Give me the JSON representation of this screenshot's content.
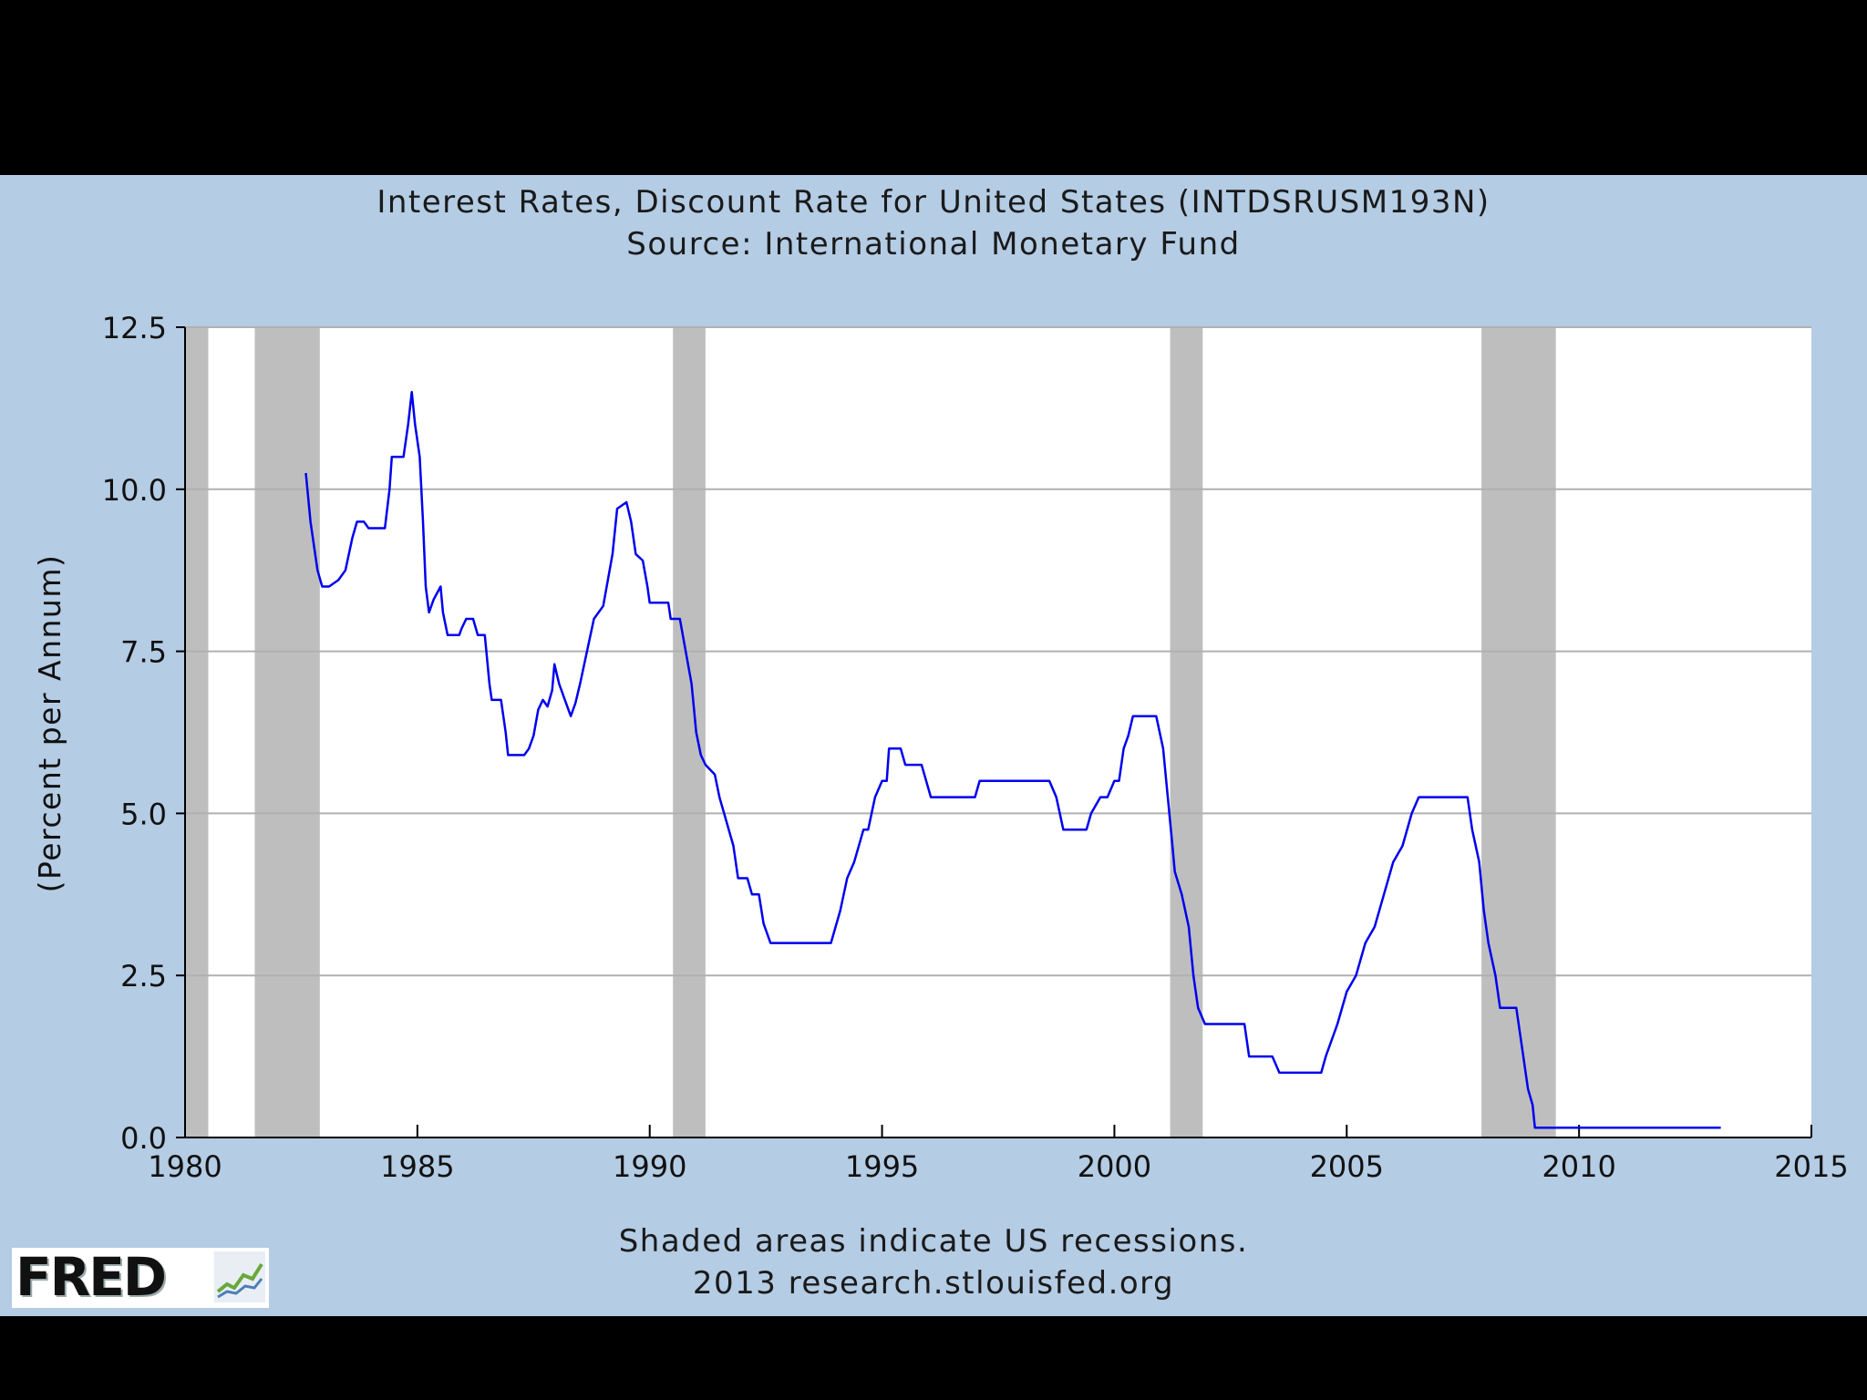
{
  "chart_data": {
    "type": "line",
    "title": "Interest Rates, Discount Rate for United States (INTDSRUSM193N)",
    "subtitle": "Source: International Monetary Fund",
    "ylabel": "(Percent per Annum)",
    "xlabel": "",
    "footnote": "Shaded areas indicate US recessions.",
    "credit": "2013 research.stlouisfed.org",
    "xlim": [
      1980,
      2015
    ],
    "ylim": [
      0,
      12.5
    ],
    "x_ticks": [
      "1980",
      "1985",
      "1990",
      "1995",
      "2000",
      "2005",
      "2010",
      "2015"
    ],
    "y_ticks": [
      "0.0",
      "2.5",
      "5.0",
      "7.5",
      "10.0",
      "12.5"
    ],
    "grid": true,
    "recessions": [
      [
        1980.0,
        1980.5
      ],
      [
        1981.5,
        1982.9
      ],
      [
        1990.5,
        1991.2
      ],
      [
        2001.2,
        2001.9
      ],
      [
        2007.9,
        2009.5
      ]
    ],
    "series": [
      {
        "color": "#0000ee",
        "points": [
          [
            1982.6,
            10.25
          ],
          [
            1982.7,
            9.5
          ],
          [
            1982.85,
            8.75
          ],
          [
            1982.95,
            8.5
          ],
          [
            1983.1,
            8.5
          ],
          [
            1983.3,
            8.6
          ],
          [
            1983.45,
            8.75
          ],
          [
            1983.6,
            9.25
          ],
          [
            1983.7,
            9.5
          ],
          [
            1983.85,
            9.5
          ],
          [
            1983.95,
            9.4
          ],
          [
            1984.3,
            9.4
          ],
          [
            1984.4,
            10.0
          ],
          [
            1984.45,
            10.5
          ],
          [
            1984.7,
            10.5
          ],
          [
            1984.8,
            11.0
          ],
          [
            1984.88,
            11.5
          ],
          [
            1984.95,
            11.0
          ],
          [
            1985.05,
            10.5
          ],
          [
            1985.12,
            9.5
          ],
          [
            1985.18,
            8.5
          ],
          [
            1985.25,
            8.1
          ],
          [
            1985.35,
            8.3
          ],
          [
            1985.5,
            8.5
          ],
          [
            1985.55,
            8.1
          ],
          [
            1985.65,
            7.75
          ],
          [
            1985.9,
            7.75
          ],
          [
            1985.95,
            7.85
          ],
          [
            1986.05,
            8.0
          ],
          [
            1986.2,
            8.0
          ],
          [
            1986.3,
            7.75
          ],
          [
            1986.45,
            7.75
          ],
          [
            1986.55,
            7.0
          ],
          [
            1986.6,
            6.75
          ],
          [
            1986.8,
            6.75
          ],
          [
            1986.9,
            6.25
          ],
          [
            1986.95,
            5.9
          ],
          [
            1987.3,
            5.9
          ],
          [
            1987.4,
            6.0
          ],
          [
            1987.5,
            6.2
          ],
          [
            1987.6,
            6.6
          ],
          [
            1987.7,
            6.75
          ],
          [
            1987.8,
            6.65
          ],
          [
            1987.9,
            6.9
          ],
          [
            1987.95,
            7.3
          ],
          [
            1988.05,
            7.0
          ],
          [
            1988.15,
            6.8
          ],
          [
            1988.3,
            6.5
          ],
          [
            1988.4,
            6.7
          ],
          [
            1988.5,
            7.0
          ],
          [
            1988.65,
            7.5
          ],
          [
            1988.8,
            8.0
          ],
          [
            1989.0,
            8.2
          ],
          [
            1989.2,
            9.0
          ],
          [
            1989.3,
            9.7
          ],
          [
            1989.5,
            9.8
          ],
          [
            1989.6,
            9.5
          ],
          [
            1989.7,
            9.0
          ],
          [
            1989.85,
            8.9
          ],
          [
            1989.95,
            8.5
          ],
          [
            1990.0,
            8.25
          ],
          [
            1990.4,
            8.25
          ],
          [
            1990.45,
            8.0
          ],
          [
            1990.65,
            8.0
          ],
          [
            1990.75,
            7.6
          ],
          [
            1990.9,
            7.0
          ],
          [
            1991.0,
            6.25
          ],
          [
            1991.1,
            5.9
          ],
          [
            1991.2,
            5.75
          ],
          [
            1991.4,
            5.6
          ],
          [
            1991.5,
            5.25
          ],
          [
            1991.6,
            5.0
          ],
          [
            1991.8,
            4.5
          ],
          [
            1991.9,
            4.0
          ],
          [
            1992.1,
            4.0
          ],
          [
            1992.2,
            3.75
          ],
          [
            1992.35,
            3.75
          ],
          [
            1992.45,
            3.3
          ],
          [
            1992.6,
            3.0
          ],
          [
            1993.9,
            3.0
          ],
          [
            1994.1,
            3.5
          ],
          [
            1994.25,
            4.0
          ],
          [
            1994.4,
            4.25
          ],
          [
            1994.6,
            4.75
          ],
          [
            1994.7,
            4.75
          ],
          [
            1994.85,
            5.25
          ],
          [
            1995.0,
            5.5
          ],
          [
            1995.1,
            5.5
          ],
          [
            1995.15,
            6.0
          ],
          [
            1995.4,
            6.0
          ],
          [
            1995.5,
            5.75
          ],
          [
            1995.85,
            5.75
          ],
          [
            1995.95,
            5.5
          ],
          [
            1996.05,
            5.25
          ],
          [
            1997.0,
            5.25
          ],
          [
            1997.1,
            5.5
          ],
          [
            1998.6,
            5.5
          ],
          [
            1998.75,
            5.25
          ],
          [
            1998.9,
            4.75
          ],
          [
            1999.4,
            4.75
          ],
          [
            1999.5,
            5.0
          ],
          [
            1999.7,
            5.25
          ],
          [
            1999.85,
            5.25
          ],
          [
            2000.0,
            5.5
          ],
          [
            2000.1,
            5.5
          ],
          [
            2000.2,
            6.0
          ],
          [
            2000.3,
            6.2
          ],
          [
            2000.4,
            6.5
          ],
          [
            2000.9,
            6.5
          ],
          [
            2001.05,
            6.0
          ],
          [
            2001.15,
            5.25
          ],
          [
            2001.25,
            4.5
          ],
          [
            2001.3,
            4.1
          ],
          [
            2001.45,
            3.75
          ],
          [
            2001.6,
            3.25
          ],
          [
            2001.7,
            2.5
          ],
          [
            2001.8,
            2.0
          ],
          [
            2001.95,
            1.75
          ],
          [
            2002.8,
            1.75
          ],
          [
            2002.9,
            1.25
          ],
          [
            2003.4,
            1.25
          ],
          [
            2003.55,
            1.0
          ],
          [
            2004.45,
            1.0
          ],
          [
            2004.55,
            1.25
          ],
          [
            2004.8,
            1.75
          ],
          [
            2005.0,
            2.25
          ],
          [
            2005.2,
            2.5
          ],
          [
            2005.4,
            3.0
          ],
          [
            2005.6,
            3.25
          ],
          [
            2005.8,
            3.75
          ],
          [
            2006.0,
            4.25
          ],
          [
            2006.2,
            4.5
          ],
          [
            2006.4,
            5.0
          ],
          [
            2006.55,
            5.25
          ],
          [
            2007.6,
            5.25
          ],
          [
            2007.7,
            4.75
          ],
          [
            2007.85,
            4.25
          ],
          [
            2007.95,
            3.5
          ],
          [
            2008.05,
            3.0
          ],
          [
            2008.2,
            2.5
          ],
          [
            2008.3,
            2.0
          ],
          [
            2008.65,
            2.0
          ],
          [
            2008.8,
            1.25
          ],
          [
            2008.9,
            0.75
          ],
          [
            2009.0,
            0.5
          ],
          [
            2009.05,
            0.15
          ],
          [
            2013.05,
            0.15
          ]
        ]
      }
    ]
  },
  "logo": {
    "text": "FRED"
  }
}
